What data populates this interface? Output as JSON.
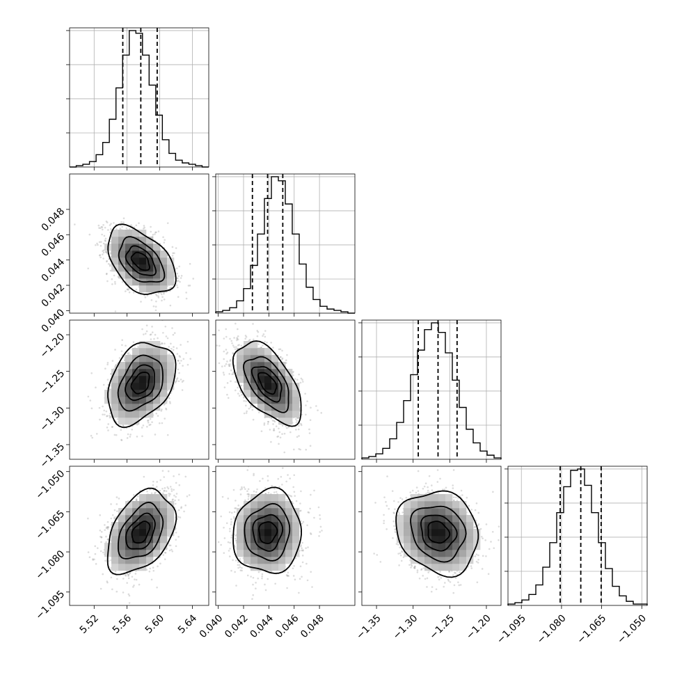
{
  "chart_data": {
    "type": "corner",
    "title": "",
    "parameters": [
      {
        "label": "",
        "range": [
          5.49,
          5.66
        ],
        "ticks": [
          5.52,
          5.56,
          5.6,
          5.64
        ],
        "tick_labels": [
          "5.52",
          "5.56",
          "5.60",
          "5.64"
        ],
        "mean": 5.577,
        "std": 0.02,
        "quantiles": [
          5.555,
          5.577,
          5.597
        ],
        "hist": {
          "edges": [
            5.49,
            5.66
          ],
          "counts": [
            0,
            1,
            2,
            4,
            9,
            18,
            35,
            58,
            82,
            100,
            98,
            82,
            60,
            38,
            20,
            10,
            5,
            3,
            2,
            1,
            0
          ]
        }
      },
      {
        "label": "",
        "range": [
          0.0398,
          0.0508
        ],
        "ticks": [
          0.04,
          0.042,
          0.044,
          0.046,
          0.048
        ],
        "tick_labels": [
          "0.040",
          "0.042",
          "0.044",
          "0.046",
          "0.048"
        ],
        "mean": 0.0439,
        "std": 0.0013,
        "quantiles": [
          0.0427,
          0.0439,
          0.0451
        ],
        "hist": {
          "edges": [
            0.0398,
            0.0508
          ],
          "counts": [
            1,
            2,
            4,
            9,
            18,
            35,
            58,
            84,
            100,
            97,
            80,
            58,
            36,
            19,
            10,
            5,
            3,
            2,
            1,
            0
          ]
        }
      },
      {
        "label": "",
        "range": [
          -1.37,
          -1.18
        ],
        "ticks": [
          -1.35,
          -1.3,
          -1.25,
          -1.2
        ],
        "tick_labels": [
          "−1.35",
          "−1.30",
          "−1.25",
          "−1.20"
        ],
        "y_ticks": [
          -1.2,
          -1.25,
          -1.3,
          -1.35
        ],
        "y_tick_labels": [
          "−1.20",
          "−1.25",
          "−1.30",
          "−1.35"
        ],
        "mean": -1.266,
        "std": 0.027,
        "quantiles": [
          -1.293,
          -1.266,
          -1.24
        ],
        "hist": {
          "edges": [
            -1.37,
            -1.18
          ],
          "counts": [
            1,
            2,
            4,
            8,
            15,
            27,
            43,
            62,
            80,
            95,
            100,
            93,
            78,
            58,
            38,
            22,
            12,
            6,
            3,
            1
          ]
        }
      },
      {
        "label": "",
        "range": [
          -1.1,
          -1.048
        ],
        "ticks": [
          -1.095,
          -1.08,
          -1.065,
          -1.05
        ],
        "tick_labels": [
          "−1.095",
          "−1.080",
          "−1.065",
          "−1.050"
        ],
        "y_ticks": [
          -1.05,
          -1.065,
          -1.08,
          -1.095
        ],
        "y_tick_labels": [
          "−1.050",
          "−1.065",
          "−1.080",
          "−1.095"
        ],
        "mean": -1.0727,
        "std": 0.0075,
        "quantiles": [
          -1.0805,
          -1.0728,
          -1.0652
        ],
        "hist": {
          "edges": [
            -1.1,
            -1.048
          ],
          "counts": [
            1,
            2,
            4,
            8,
            15,
            28,
            46,
            68,
            87,
            99,
            100,
            88,
            68,
            46,
            27,
            14,
            7,
            3,
            1,
            1
          ]
        }
      }
    ],
    "correlations": {
      "0-1": -0.45,
      "0-2": 0.35,
      "1-2": -0.55,
      "0-3": 0.4,
      "1-3": 0.05,
      "2-3": -0.15
    },
    "contour_levels_sigma": [
      0.5,
      1.0,
      1.5,
      2.0
    ],
    "grid": true,
    "colors": {
      "points": "#9a9a9a",
      "lines": "#000000",
      "density_dark": "#000000",
      "density_light": "#ffffff"
    }
  }
}
